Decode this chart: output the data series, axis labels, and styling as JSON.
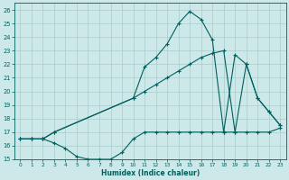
{
  "xlabel": "Humidex (Indice chaleur)",
  "bg_color": "#cce8e8",
  "grid_color": "#aacccc",
  "line_color": "#005f5f",
  "xlim": [
    -0.5,
    23.5
  ],
  "ylim": [
    15,
    26.5
  ],
  "yticks": [
    15,
    16,
    17,
    18,
    19,
    20,
    21,
    22,
    23,
    24,
    25,
    26
  ],
  "xticks": [
    0,
    1,
    2,
    3,
    4,
    5,
    6,
    7,
    8,
    9,
    10,
    11,
    12,
    13,
    14,
    15,
    16,
    17,
    18,
    19,
    20,
    21,
    22,
    23
  ],
  "line1_x": [
    0,
    1,
    2,
    3,
    10,
    11,
    12,
    13,
    14,
    15,
    16,
    17,
    18,
    19,
    20,
    21,
    22,
    23
  ],
  "line1_y": [
    16.5,
    16.5,
    16.5,
    17.0,
    19.5,
    21.8,
    22.5,
    23.5,
    25.0,
    25.9,
    25.3,
    23.8,
    17.0,
    22.7,
    22.0,
    19.5,
    18.5,
    17.5
  ],
  "line2_x": [
    0,
    1,
    2,
    3,
    10,
    11,
    12,
    13,
    14,
    15,
    16,
    17,
    18,
    19,
    20,
    21,
    22,
    23
  ],
  "line2_y": [
    16.5,
    16.5,
    16.5,
    17.0,
    19.5,
    20.0,
    20.5,
    21.0,
    21.5,
    22.0,
    22.5,
    22.8,
    23.0,
    17.0,
    22.0,
    19.5,
    18.5,
    17.5
  ],
  "line3_x": [
    0,
    1,
    2,
    3,
    4,
    5,
    6,
    7,
    8,
    9,
    10,
    11,
    12,
    13,
    14,
    15,
    16,
    17,
    18,
    19,
    20,
    21,
    22,
    23
  ],
  "line3_y": [
    16.5,
    16.5,
    16.5,
    16.2,
    15.8,
    15.2,
    15.0,
    15.0,
    15.0,
    15.5,
    16.5,
    17.0,
    17.0,
    17.0,
    17.0,
    17.0,
    17.0,
    17.0,
    17.0,
    17.0,
    17.0,
    17.0,
    17.0,
    17.3
  ]
}
